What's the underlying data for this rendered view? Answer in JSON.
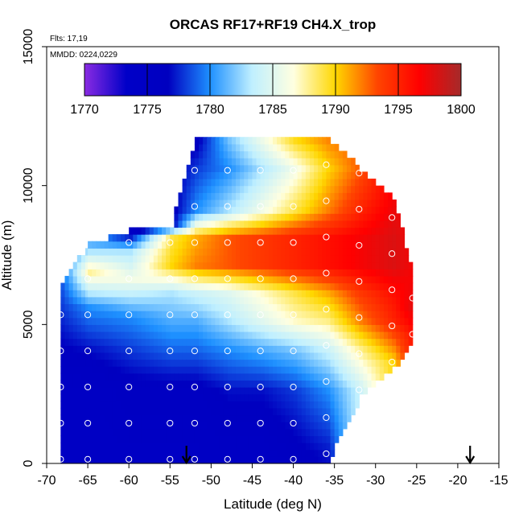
{
  "chart_data": {
    "type": "heatmap",
    "title": "ORCAS RF17+RF19 CH4.X_trop",
    "annotations": {
      "flights": "Flts: 17,19",
      "dates": "MMDD: 0224,0229"
    },
    "xlabel": "Latitude (deg N)",
    "ylabel": "Altitude (m)",
    "xlim": [
      -70,
      -15
    ],
    "ylim": [
      0,
      15000
    ],
    "x_ticks": [
      -70,
      -65,
      -60,
      -55,
      -50,
      -45,
      -40,
      -35,
      -30,
      -25,
      -20,
      -15
    ],
    "y_ticks": [
      0,
      5000,
      10000,
      15000
    ],
    "colorbar": {
      "range": [
        1770,
        1800
      ],
      "ticks": [
        1770,
        1775,
        1780,
        1785,
        1790,
        1795,
        1800
      ],
      "colors": [
        "#8a2be2",
        "#0000c8",
        "#0000c0",
        "#1e90ff",
        "#bfefff",
        "#ffffe0",
        "#ffd700",
        "#ff4500",
        "#ff0000",
        "#a52a2a"
      ]
    },
    "arrows_x": [
      -53,
      -18.5
    ],
    "series": [
      {
        "name": "",
        "kind": "field_profiles",
        "profiles": [
          {
            "lat": -68.3,
            "alt_min": 0,
            "alt_max": 6500,
            "values": [
              [
                0,
                1775
              ],
              [
                2500,
                1775
              ],
              [
                4500,
                1777
              ],
              [
                6500,
                1779
              ]
            ]
          },
          {
            "lat": -65,
            "alt_min": 0,
            "alt_max": 7800,
            "values": [
              [
                0,
                1775
              ],
              [
                2500,
                1775
              ],
              [
                4000,
                1777
              ],
              [
                5500,
                1780
              ],
              [
                6800,
                1788
              ],
              [
                7800,
                1781
              ]
            ]
          },
          {
            "lat": -60,
            "alt_min": 0,
            "alt_max": 8300,
            "values": [
              [
                0,
                1775
              ],
              [
                2500,
                1776
              ],
              [
                4000,
                1778
              ],
              [
                5200,
                1780
              ],
              [
                6500,
                1786
              ],
              [
                7500,
                1783
              ],
              [
                8300,
                1774
              ]
            ]
          },
          {
            "lat": -55,
            "alt_min": 0,
            "alt_max": 8500,
            "values": [
              [
                0,
                1775
              ],
              [
                2500,
                1776
              ],
              [
                4000,
                1779
              ],
              [
                5000,
                1781
              ],
              [
                6000,
                1783
              ],
              [
                7000,
                1790
              ],
              [
                8000,
                1789
              ],
              [
                8500,
                1776
              ]
            ]
          },
          {
            "lat": -52,
            "alt_min": 0,
            "alt_max": 11600,
            "values": [
              [
                0,
                1775
              ],
              [
                2500,
                1776
              ],
              [
                4000,
                1779
              ],
              [
                5000,
                1781
              ],
              [
                6000,
                1784
              ],
              [
                7000,
                1792
              ],
              [
                8000,
                1791
              ],
              [
                9000,
                1780
              ],
              [
                10500,
                1778
              ],
              [
                11600,
                1776
              ]
            ]
          },
          {
            "lat": -48,
            "alt_min": 0,
            "alt_max": 11600,
            "values": [
              [
                0,
                1775
              ],
              [
                2500,
                1777
              ],
              [
                4000,
                1780
              ],
              [
                5000,
                1783
              ],
              [
                6000,
                1785
              ],
              [
                7000,
                1793
              ],
              [
                8000,
                1793
              ],
              [
                9000,
                1783
              ],
              [
                10500,
                1780
              ],
              [
                11600,
                1782
              ]
            ]
          },
          {
            "lat": -44,
            "alt_min": 0,
            "alt_max": 11600,
            "values": [
              [
                0,
                1775
              ],
              [
                2500,
                1777
              ],
              [
                4000,
                1781
              ],
              [
                5000,
                1785
              ],
              [
                6000,
                1787
              ],
              [
                7000,
                1794
              ],
              [
                8000,
                1794
              ],
              [
                9000,
                1786
              ],
              [
                10500,
                1783
              ],
              [
                11600,
                1786
              ]
            ]
          },
          {
            "lat": -40,
            "alt_min": 0,
            "alt_max": 11600,
            "values": [
              [
                0,
                1776
              ],
              [
                2500,
                1778
              ],
              [
                4000,
                1782
              ],
              [
                5000,
                1787
              ],
              [
                6000,
                1789
              ],
              [
                7000,
                1795
              ],
              [
                8000,
                1795
              ],
              [
                9000,
                1789
              ],
              [
                10500,
                1786
              ],
              [
                11600,
                1790
              ]
            ]
          },
          {
            "lat": -36,
            "alt_min": 200,
            "alt_max": 11600,
            "values": [
              [
                200,
                1777
              ],
              [
                2500,
                1780
              ],
              [
                4000,
                1784
              ],
              [
                5000,
                1788
              ],
              [
                6000,
                1791
              ],
              [
                7000,
                1796
              ],
              [
                8000,
                1796
              ],
              [
                9000,
                1792
              ],
              [
                10500,
                1790
              ],
              [
                11600,
                1792
              ]
            ]
          },
          {
            "lat": -32,
            "alt_min": 2500,
            "alt_max": 10500,
            "values": [
              [
                2500,
                1784
              ],
              [
                4000,
                1788
              ],
              [
                5000,
                1792
              ],
              [
                6000,
                1794
              ],
              [
                7000,
                1797
              ],
              [
                8000,
                1797
              ],
              [
                9000,
                1795
              ],
              [
                10500,
                1793
              ]
            ]
          },
          {
            "lat": -28,
            "alt_min": 3500,
            "alt_max": 9500,
            "values": [
              [
                3500,
                1790
              ],
              [
                5000,
                1795
              ],
              [
                6000,
                1796
              ],
              [
                7000,
                1798
              ],
              [
                8000,
                1798
              ],
              [
                9500,
                1797
              ]
            ]
          },
          {
            "lat": -25.5,
            "alt_min": 4500,
            "alt_max": 6500,
            "values": [
              [
                4500,
                1796
              ],
              [
                5500,
                1798
              ],
              [
                6500,
                1797
              ]
            ]
          }
        ]
      }
    ]
  }
}
